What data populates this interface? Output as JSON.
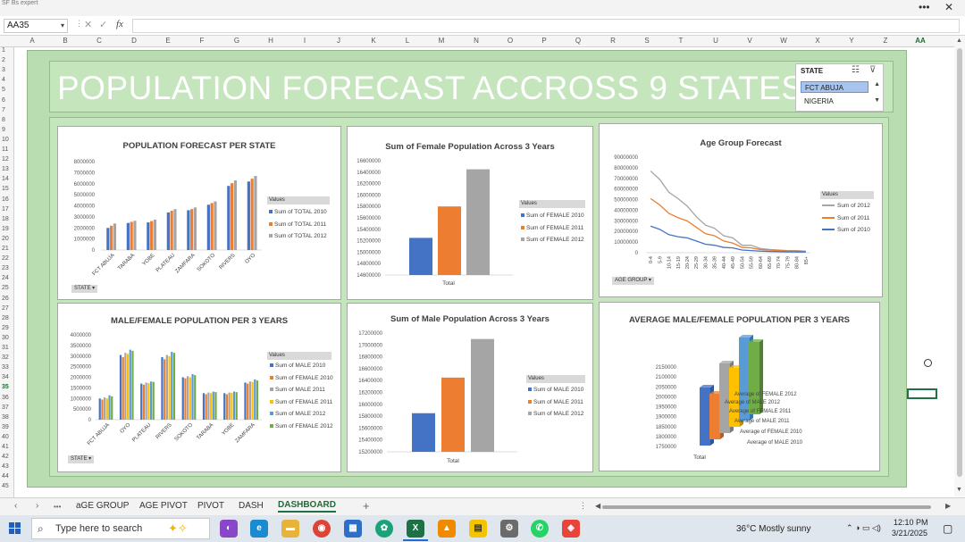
{
  "window": {
    "tiny_title": "SF Bs expert",
    "more": "•••",
    "close": "✕"
  },
  "formula_bar": {
    "name_box": "AA35",
    "fx": "fx",
    "cancel": "✕",
    "enter": "✓",
    "formula": ""
  },
  "columns": [
    "A",
    "B",
    "C",
    "D",
    "E",
    "F",
    "G",
    "H",
    "I",
    "J",
    "K",
    "L",
    "M",
    "N",
    "O",
    "P",
    "Q",
    "R",
    "S",
    "T",
    "U",
    "V",
    "W",
    "X",
    "Y",
    "Z",
    "AA"
  ],
  "selected_column": "AA",
  "rows": [
    "1",
    "2",
    "3",
    "4",
    "5",
    "6",
    "7",
    "8",
    "9",
    "10",
    "11",
    "12",
    "13",
    "14",
    "15",
    "16",
    "17",
    "18",
    "19",
    "20",
    "21",
    "22",
    "23",
    "24",
    "25",
    "26",
    "27",
    "28",
    "29",
    "30",
    "31",
    "32",
    "33",
    "34",
    "35",
    "36",
    "37",
    "38",
    "39",
    "40",
    "41",
    "42",
    "43",
    "44",
    "45"
  ],
  "dashboard": {
    "title": "POPULATION FORECAST ACCROSS 9 STATES",
    "slicer": {
      "header": "STATE",
      "items": [
        "FCT ABUJA",
        "NIGERIA"
      ],
      "selected": "FCT ABUJA"
    }
  },
  "colors": {
    "s1": "#4472C4",
    "s2": "#ED7D31",
    "s3": "#A5A5A5",
    "s4": "#FFC000",
    "s5": "#5B9BD5",
    "s6": "#70AD47",
    "green_bg": "#C5E5BD",
    "excel_green": "#1E7145"
  },
  "charts": {
    "pop_state": {
      "title": "POPULATION FORECAST PER STATE",
      "legend_title": "Values",
      "filter_label": "STATE",
      "yticks": [
        "8000000",
        "7000000",
        "6000000",
        "5000000",
        "4000000",
        "3000000",
        "2000000",
        "1000000",
        "0"
      ]
    },
    "female": {
      "title": "Sum of Female Population Across 3 Years",
      "legend_title": "Values",
      "xlabel": "Total",
      "yticks": [
        "16600000",
        "16400000",
        "16200000",
        "16000000",
        "15800000",
        "15600000",
        "15400000",
        "15200000",
        "15000000",
        "14800000",
        "14600000"
      ]
    },
    "age": {
      "title": "Age Group Forecast",
      "legend_title": "Values",
      "filter_label": "AGE GROUP",
      "yticks": [
        "90000000",
        "80000000",
        "70000000",
        "60000000",
        "50000000",
        "40000000",
        "30000000",
        "20000000",
        "10000000",
        "0"
      ]
    },
    "mf": {
      "title": "MALE/FEMALE POPULATION PER 3 YEARS",
      "legend_title": "Values",
      "filter_label": "STATE",
      "yticks": [
        "4000000",
        "3500000",
        "3000000",
        "2500000",
        "2000000",
        "1500000",
        "1000000",
        "500000",
        "0"
      ]
    },
    "male": {
      "title": "Sum of Male Population Across 3 Years",
      "legend_title": "Values",
      "xlabel": "Total",
      "yticks": [
        "17200000",
        "17000000",
        "16800000",
        "16600000",
        "16400000",
        "16200000",
        "16000000",
        "15800000",
        "15600000",
        "15400000",
        "15200000"
      ]
    },
    "avg": {
      "title": "AVERAGE MALE/FEMALE POPULATION PER 3 YEARS",
      "xlabel": "Total",
      "yticks": [
        "2150000",
        "2100000",
        "2050000",
        "2000000",
        "1950000",
        "1900000",
        "1850000",
        "1800000",
        "1750000"
      ]
    }
  },
  "chart_data": [
    {
      "type": "bar",
      "title": "POPULATION FORECAST PER STATE",
      "categories": [
        "FCT ABUJA",
        "TARABA",
        "YOBE",
        "PLATEAU",
        "ZAMFARA",
        "SOKOTO",
        "RIVERS",
        "OYO"
      ],
      "ylim": [
        0,
        8000000
      ],
      "series": [
        {
          "name": "Sum of TOTAL 2010",
          "values": [
            2000000,
            2450000,
            2500000,
            3400000,
            3600000,
            4100000,
            5800000,
            6200000
          ]
        },
        {
          "name": "Sum of TOTAL 2011",
          "values": [
            2200000,
            2550000,
            2620000,
            3550000,
            3700000,
            4250000,
            6050000,
            6450000
          ]
        },
        {
          "name": "Sum of TOTAL 2012",
          "values": [
            2400000,
            2650000,
            2750000,
            3700000,
            3850000,
            4400000,
            6300000,
            6700000
          ]
        }
      ]
    },
    {
      "type": "bar",
      "title": "Sum of Female Population Across 3 Years",
      "categories": [
        "Total"
      ],
      "ylim": [
        14600000,
        16600000
      ],
      "series": [
        {
          "name": "Sum of FEMALE 2010",
          "values": [
            15250000
          ]
        },
        {
          "name": "Sum of FEMALE 2011",
          "values": [
            15800000
          ]
        },
        {
          "name": "Sum of FEMALE 2012",
          "values": [
            16450000
          ]
        }
      ]
    },
    {
      "type": "line",
      "title": "Age Group Forecast",
      "categories": [
        "0-4",
        "5-9",
        "10-14",
        "15-19",
        "20-24",
        "25-29",
        "30-34",
        "35-39",
        "40-44",
        "45-49",
        "50-54",
        "55-59",
        "60-64",
        "65-69",
        "70-74",
        "75-79",
        "80-84",
        "85+"
      ],
      "ylim": [
        0,
        90000000
      ],
      "series": [
        {
          "name": "Sum of 2012",
          "values": [
            77000000,
            69000000,
            57000000,
            51000000,
            44000000,
            34000000,
            26000000,
            23000000,
            16000000,
            14000000,
            7000000,
            7000000,
            4000000,
            3000000,
            2500000,
            2000000,
            2000000,
            1500000
          ]
        },
        {
          "name": "Sum of 2011",
          "values": [
            51000000,
            45000000,
            37000000,
            33000000,
            30000000,
            24000000,
            18000000,
            16000000,
            11000000,
            9000000,
            5000000,
            4500000,
            3000000,
            2500000,
            2000000,
            1500000,
            1500000,
            1000000
          ]
        },
        {
          "name": "Sum of 2010",
          "values": [
            25000000,
            22000000,
            17000000,
            15000000,
            14000000,
            11000000,
            8000000,
            7000000,
            5000000,
            4500000,
            2500000,
            2000000,
            1500000,
            1200000,
            1000000,
            800000,
            700000,
            600000
          ]
        }
      ]
    },
    {
      "type": "bar",
      "title": "MALE/FEMALE POPULATION PER 3 YEARS",
      "categories": [
        "FCT ABUJA",
        "OYO",
        "PLATEAU",
        "RIVERS",
        "SOKOTO",
        "TARABA",
        "YOBE",
        "ZAMFARA"
      ],
      "ylim": [
        0,
        4000000
      ],
      "series": [
        {
          "name": "Sum of MALE 2010",
          "values": [
            1000000,
            3050000,
            1700000,
            2950000,
            2000000,
            1250000,
            1250000,
            1750000
          ]
        },
        {
          "name": "Sum of FEMALE 2010",
          "values": [
            950000,
            2950000,
            1650000,
            2850000,
            1950000,
            1200000,
            1200000,
            1700000
          ]
        },
        {
          "name": "Sum of MALE 2011",
          "values": [
            1050000,
            3150000,
            1750000,
            3050000,
            2050000,
            1280000,
            1280000,
            1800000
          ]
        },
        {
          "name": "Sum of FEMALE 2011",
          "values": [
            1000000,
            3100000,
            1720000,
            3000000,
            2000000,
            1250000,
            1260000,
            1780000
          ]
        },
        {
          "name": "Sum of MALE 2012",
          "values": [
            1150000,
            3300000,
            1800000,
            3200000,
            2150000,
            1320000,
            1330000,
            1900000
          ]
        },
        {
          "name": "Sum of FEMALE 2012",
          "values": [
            1100000,
            3250000,
            1780000,
            3150000,
            2100000,
            1300000,
            1300000,
            1850000
          ]
        }
      ]
    },
    {
      "type": "bar",
      "title": "Sum of Male Population Across 3 Years",
      "categories": [
        "Total"
      ],
      "ylim": [
        15200000,
        17200000
      ],
      "series": [
        {
          "name": "Sum of MALE 2010",
          "values": [
            15850000
          ]
        },
        {
          "name": "Sum of MALE 2011",
          "values": [
            16450000
          ]
        },
        {
          "name": "Sum of MALE 2012",
          "values": [
            17100000
          ]
        }
      ]
    },
    {
      "type": "bar",
      "title": "AVERAGE MALE/FEMALE POPULATION PER 3 YEARS",
      "categories": [
        "Total"
      ],
      "ylim": [
        1750000,
        2150000
      ],
      "series": [
        {
          "name": "Average of MALE 2010",
          "values": [
            1985000
          ]
        },
        {
          "name": "Average of FEMALE 2010",
          "values": [
            1915000
          ]
        },
        {
          "name": "Average of MALE 2011",
          "values": [
            2050000
          ]
        },
        {
          "name": "Average of FEMALE 2011",
          "values": [
            1990000
          ]
        },
        {
          "name": "Average of MALE 2012",
          "values": [
            2125000
          ]
        },
        {
          "name": "Average of FEMALE 2012",
          "values": [
            2065000
          ]
        }
      ]
    }
  ],
  "sheet_tabs": {
    "items": [
      "aGE GROUP",
      "AGE PIVOT",
      "PIVOT",
      "DASH",
      "DASHBOARD"
    ],
    "active": "DASHBOARD",
    "add": "+",
    "more": "•••"
  },
  "taskbar": {
    "search_placeholder": "Type here to search",
    "weather": "36°C  Mostly sunny",
    "time": "12:10 PM",
    "date": "3/21/2025"
  }
}
